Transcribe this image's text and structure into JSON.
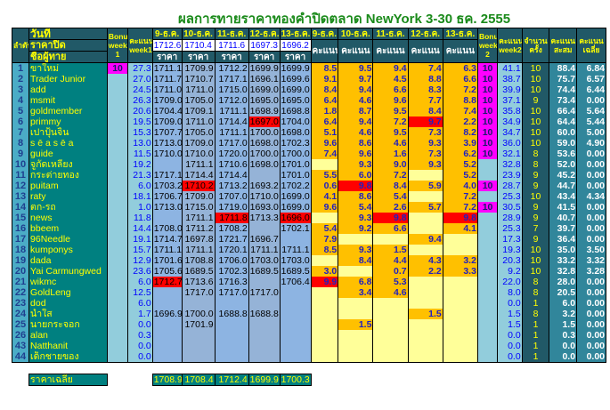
{
  "title": "ผลการทายราคาทองคำปิดตลาด NewYork 3-30 ธค. 2555",
  "header": {
    "rank": "ลำดับ",
    "date": "วันที่",
    "close_label": "ราคาปิด",
    "name_label": "ชื่อผู้ทาย",
    "bonus1": "Bonus week 1",
    "score1": "คะแนน week1",
    "dates": [
      "9-ธ.ค.",
      "10-ธ.ค.",
      "11-ธ.ค.",
      "12-ธ.ค.",
      "13-ธ.ค."
    ],
    "closing_prices": [
      "1712.6",
      "1710.4",
      "1711.6",
      "1697.3",
      "1696.2"
    ],
    "price_label": "ราคา",
    "score_label": "คะแนน",
    "bonus2": "Bonus week 2",
    "score2": "คะแนน week2",
    "count": "จำนวนครั้ง",
    "total": "คะแนนสะสม",
    "average": "คะแนนเฉลี่ย"
  },
  "colors": {
    "header": "#215967",
    "score_filled": "#ffc000",
    "score_empty": "#ffff99",
    "highlight": "#ff0000",
    "bonus": "#ff00ff"
  },
  "rows": [
    {
      "n": "1",
      "name": "ขาใหม่",
      "b1": "10",
      "w1": "27.3",
      "p": [
        "1711.1",
        "1709.9",
        "1712.2",
        "1699.9",
        "1699.9"
      ],
      "s": [
        "8.5",
        "9.5",
        "9.4",
        "7.4",
        "6.3"
      ],
      "b2": "10",
      "w2": "41.1",
      "cnt": "10",
      "sum": "88.4",
      "avg": "6.84"
    },
    {
      "n": "2",
      "name": "Trader Junior",
      "b1": "",
      "w1": "27.0",
      "p": [
        "1711.7",
        "1710.7",
        "1717.1",
        "1696.1",
        "1699.6"
      ],
      "s": [
        "9.1",
        "9.7",
        "4.5",
        "8.8",
        "6.6"
      ],
      "b2": "10",
      "w2": "38.7",
      "cnt": "10",
      "sum": "75.7",
      "avg": "6.57"
    },
    {
      "n": "3",
      "name": "add",
      "b1": "",
      "w1": "24.5",
      "p": [
        "1711.0",
        "1711.0",
        "1715.0",
        "1699.0",
        "1699.0"
      ],
      "s": [
        "8.4",
        "9.4",
        "6.6",
        "8.3",
        "7.2"
      ],
      "b2": "10",
      "w2": "39.9",
      "cnt": "10",
      "sum": "74.4",
      "avg": "6.44"
    },
    {
      "n": "4",
      "name": "msmit",
      "b1": "",
      "w1": "26.3",
      "p": [
        "1709.0",
        "1705.0",
        "1712.0",
        "1695.0",
        "1695.0"
      ],
      "s": [
        "6.4",
        "4.6",
        "9.6",
        "7.7",
        "8.8"
      ],
      "b2": "10",
      "w2": "37.1",
      "cnt": "9",
      "sum": "73.4",
      "avg": "0.00"
    },
    {
      "n": "5",
      "name": "goldmember",
      "b1": "",
      "w1": "20.6",
      "p": [
        "1704.4",
        "1709.1",
        "1711.1",
        "1698.9",
        "1698.8"
      ],
      "s": [
        "1.8",
        "8.7",
        "9.5",
        "8.4",
        "7.4"
      ],
      "b2": "10",
      "w2": "35.8",
      "cnt": "10",
      "sum": "66.4",
      "avg": "5.64"
    },
    {
      "n": "6",
      "name": "primmy",
      "b1": "",
      "w1": "19.5",
      "p": [
        "1709.0",
        "1711.0",
        "1714.4",
        "1697.0",
        "1704.0"
      ],
      "s": [
        "6.4",
        "9.4",
        "7.2",
        "9.7",
        "2.2"
      ],
      "red": [
        3
      ],
      "b2": "10",
      "w2": "34.9",
      "cnt": "10",
      "sum": "64.4",
      "avg": "5.44"
    },
    {
      "n": "7",
      "name": "เปาปุ้นจิ้น",
      "b1": "",
      "w1": "15.3",
      "p": [
        "1707.7",
        "1705.0",
        "1711.1",
        "1700.0",
        "1698.0"
      ],
      "s": [
        "5.1",
        "4.6",
        "9.5",
        "7.3",
        "8.2"
      ],
      "b2": "10",
      "w2": "34.7",
      "cnt": "10",
      "sum": "60.0",
      "avg": "5.00"
    },
    {
      "n": "8",
      "name": "s ē a s ē a",
      "b1": "",
      "w1": "13.0",
      "p": [
        "1713.0",
        "1709.0",
        "1717.0",
        "1698.0",
        "1702.3"
      ],
      "s": [
        "9.6",
        "8.6",
        "4.6",
        "9.3",
        "3.9"
      ],
      "b2": "10",
      "w2": "36.0",
      "cnt": "10",
      "sum": "59.0",
      "avg": "4.90"
    },
    {
      "n": "9",
      "name": "guide",
      "b1": "",
      "w1": "11.5",
      "p": [
        "1710.0",
        "1710.0",
        "1720.0",
        "1700.0",
        "1700.0"
      ],
      "s": [
        "7.4",
        "9.6",
        "1.6",
        "7.3",
        "6.2"
      ],
      "b2": "10",
      "w2": "32.1",
      "cnt": "8",
      "sum": "53.6",
      "avg": "0.00"
    },
    {
      "n": "10",
      "name": "จูกัดเหลียง",
      "b1": "",
      "w1": "19.2",
      "p": [
        "",
        "1711.1",
        "1710.6",
        "1698.0",
        "1701.0"
      ],
      "s": [
        "",
        "9.3",
        "9.0",
        "9.3",
        "5.2"
      ],
      "b2": "",
      "w2": "32.8",
      "cnt": "8",
      "sum": "52.0",
      "avg": "0.00"
    },
    {
      "n": "11",
      "name": "กระต่ายทอง",
      "b1": "",
      "w1": "21.3",
      "p": [
        "1717.1",
        "1714.4",
        "1714.4",
        "",
        "1701.0"
      ],
      "s": [
        "5.5",
        "6.0",
        "7.2",
        "",
        "5.2"
      ],
      "b2": "",
      "w2": "23.9",
      "cnt": "9",
      "sum": "45.2",
      "avg": "0.00"
    },
    {
      "n": "12",
      "name": "puitam",
      "b1": "",
      "w1": "6.0",
      "p": [
        "1703.2",
        "1710.2",
        "1713.2",
        "1693.2",
        "1702.2"
      ],
      "s": [
        "0.6",
        "9.8",
        "8.4",
        "5.9",
        "4.0"
      ],
      "red": [
        1
      ],
      "b2": "10",
      "w2": "28.7",
      "cnt": "9",
      "sum": "44.7",
      "avg": "0.00"
    },
    {
      "n": "13",
      "name": "raty",
      "b1": "",
      "w1": "18.1",
      "p": [
        "1706.7",
        "1709.0",
        "1707.0",
        "1710.0",
        "1699.0"
      ],
      "s": [
        "4.1",
        "8.6",
        "5.4",
        "",
        "7.2"
      ],
      "b2": "",
      "w2": "25.3",
      "cnt": "10",
      "sum": "43.4",
      "avg": "4.34"
    },
    {
      "n": "14",
      "name": "ตก-รถ",
      "b1": "",
      "w1": "1.0",
      "p": [
        "1713.0",
        "1715.0",
        "1719.0",
        "1693.0",
        "1699.0"
      ],
      "s": [
        "9.6",
        "5.4",
        "2.6",
        "5.7",
        "7.2"
      ],
      "b2": "10",
      "w2": "30.5",
      "cnt": "9",
      "sum": "41.5",
      "avg": "0.00"
    },
    {
      "n": "15",
      "name": "news",
      "b1": "",
      "w1": "11.8",
      "p": [
        "",
        "1711.1",
        "1711.8",
        "1713.3",
        "1696.0"
      ],
      "s": [
        "",
        "9.3",
        "9.8",
        "",
        "9.8"
      ],
      "red": [
        2,
        4
      ],
      "b2": "",
      "w2": "28.9",
      "cnt": "9",
      "sum": "40.7",
      "avg": "0.00"
    },
    {
      "n": "16",
      "name": "bbeem",
      "b1": "",
      "w1": "14.4",
      "p": [
        "1708.0",
        "1711.2",
        "1708.2",
        "",
        "1702.1"
      ],
      "s": [
        "5.4",
        "9.2",
        "6.6",
        "",
        "4.1"
      ],
      "b2": "",
      "w2": "25.3",
      "cnt": "7",
      "sum": "39.7",
      "avg": "0.00"
    },
    {
      "n": "17",
      "name": "96Needle",
      "b1": "",
      "w1": "19.1",
      "p": [
        "1714.7",
        "1697.8",
        "1721.7",
        "1696.7",
        ""
      ],
      "s": [
        "7.9",
        "",
        "",
        "9.4",
        ""
      ],
      "b2": "",
      "w2": "17.3",
      "cnt": "9",
      "sum": "36.4",
      "avg": "0.00"
    },
    {
      "n": "18",
      "name": "kumponys",
      "b1": "",
      "w1": "15.7",
      "p": [
        "1711.1",
        "1711.1",
        "1720.1",
        "1711.1",
        "1711.1"
      ],
      "s": [
        "8.5",
        "9.3",
        "1.5",
        "",
        ""
      ],
      "b2": "",
      "w2": "19.3",
      "cnt": "10",
      "sum": "35.0",
      "avg": "3.50"
    },
    {
      "n": "19",
      "name": "dada",
      "b1": "",
      "w1": "12.9",
      "p": [
        "1701.6",
        "1708.8",
        "1706.0",
        "1703.0",
        "1703.0"
      ],
      "s": [
        "",
        "8.4",
        "4.4",
        "4.3",
        "3.2"
      ],
      "b2": "",
      "w2": "20.3",
      "cnt": "10",
      "sum": "33.2",
      "avg": "3.32"
    },
    {
      "n": "20",
      "name": "Yai Carmungwed",
      "b1": "",
      "w1": "23.6",
      "p": [
        "1705.6",
        "1689.5",
        "1702.3",
        "1689.5",
        "1689.5"
      ],
      "s": [
        "3.0",
        "",
        "0.7",
        "2.2",
        "3.3"
      ],
      "b2": "",
      "w2": "9.2",
      "cnt": "10",
      "sum": "32.8",
      "avg": "3.28"
    },
    {
      "n": "21",
      "name": "wikmc",
      "b1": "",
      "w1": "6.0",
      "p": [
        "1712.7",
        "1713.6",
        "1716.3",
        "",
        "1706.4"
      ],
      "s": [
        "9.9",
        "6.8",
        "5.3",
        "",
        ""
      ],
      "red": [
        0
      ],
      "b2": "",
      "w2": "22.0",
      "cnt": "8",
      "sum": "28.0",
      "avg": "0.00"
    },
    {
      "n": "22",
      "name": "GoldLeng",
      "b1": "",
      "w1": "12.5",
      "p": [
        "",
        "1717.0",
        "1717.0",
        "1717.0",
        ""
      ],
      "s": [
        "",
        "3.4",
        "4.6",
        "",
        ""
      ],
      "b2": "",
      "w2": "8.0",
      "cnt": "8",
      "sum": "20.5",
      "avg": "0.00"
    },
    {
      "n": "23",
      "name": "dod",
      "b1": "",
      "w1": "6.0",
      "p": [
        "",
        "",
        "",
        "",
        ""
      ],
      "s": [
        "",
        "",
        "",
        "",
        ""
      ],
      "b2": "",
      "w2": "0.0",
      "cnt": "1",
      "sum": "6.0",
      "avg": "0.00"
    },
    {
      "n": "24",
      "name": "น้ำใส",
      "b1": "",
      "w1": "1.7",
      "p": [
        "1696.9",
        "1700.0",
        "1688.8",
        "1688.8",
        ""
      ],
      "s": [
        "",
        "",
        "",
        "1.5",
        ""
      ],
      "b2": "",
      "w2": "1.5",
      "cnt": "8",
      "sum": "3.2",
      "avg": "0.00"
    },
    {
      "n": "25",
      "name": "นายกระจอก",
      "b1": "",
      "w1": "0.0",
      "p": [
        "",
        "1701.9",
        "",
        "",
        ""
      ],
      "s": [
        "",
        "1.5",
        "",
        "",
        ""
      ],
      "b2": "",
      "w2": "1.5",
      "cnt": "1",
      "sum": "1.5",
      "avg": "0.00"
    },
    {
      "n": "26",
      "name": "alan",
      "b1": "",
      "w1": "0.3",
      "p": [
        "",
        "",
        "",
        "",
        ""
      ],
      "s": [
        "",
        "",
        "",
        "",
        ""
      ],
      "b2": "",
      "w2": "0.0",
      "cnt": "1",
      "sum": "0.3",
      "avg": "0.00"
    },
    {
      "n": "43",
      "name": "Natthanit",
      "b1": "",
      "w1": "0.0",
      "p": [
        "",
        "",
        "",
        "",
        ""
      ],
      "s": [
        "",
        "",
        "",
        "",
        ""
      ],
      "b2": "",
      "w2": "0.0",
      "cnt": "1",
      "sum": "0.0",
      "avg": "0.00"
    },
    {
      "n": "44",
      "name": "เด็กชายของ",
      "b1": "",
      "w1": "0.0",
      "p": [
        "",
        "",
        "",
        "",
        ""
      ],
      "s": [
        "",
        "",
        "",
        "",
        ""
      ],
      "b2": "",
      "w2": "0.0",
      "cnt": "1",
      "sum": "0.0",
      "avg": "0.00"
    }
  ],
  "footer": {
    "label": "ราคาเฉลี่ย",
    "avg_prices": [
      "1708.9",
      "1708.4",
      "1712.4",
      "1699.9",
      "1700.3"
    ]
  }
}
